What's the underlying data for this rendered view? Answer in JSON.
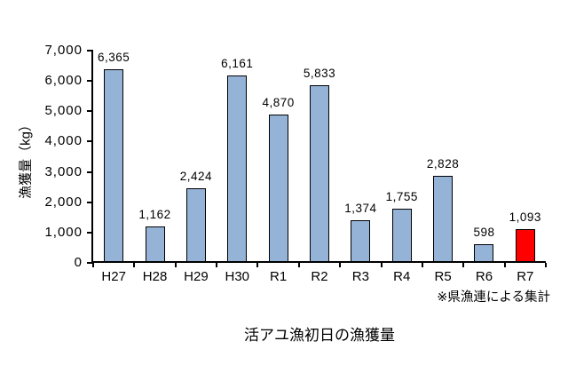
{
  "chart_data": {
    "type": "bar",
    "title": "活アユ漁初日の漁獲量",
    "ylabel": "漁獲量（kg）",
    "note": "※県漁連による集計",
    "categories": [
      "H27",
      "H28",
      "H29",
      "H30",
      "R1",
      "R2",
      "R3",
      "R4",
      "R5",
      "R6",
      "R7"
    ],
    "values": [
      6365,
      1162,
      2424,
      6161,
      4870,
      5833,
      1374,
      1755,
      2828,
      598,
      1093
    ],
    "value_labels": [
      "6,365",
      "1,162",
      "2,424",
      "6,161",
      "4,870",
      "5,833",
      "1,374",
      "1,755",
      "2,828",
      "598",
      "1,093"
    ],
    "ylim": [
      0,
      7000
    ],
    "ytick_interval": 1000,
    "ytick_labels": [
      "0",
      "1,000",
      "2,000",
      "3,000",
      "4,000",
      "5,000",
      "6,000",
      "7,000"
    ],
    "grid": false,
    "legend": "none",
    "bar_color": "#95B3D7",
    "bar_border_color": "#000000",
    "highlight_index": 10,
    "highlight_color": "#FF0000"
  }
}
